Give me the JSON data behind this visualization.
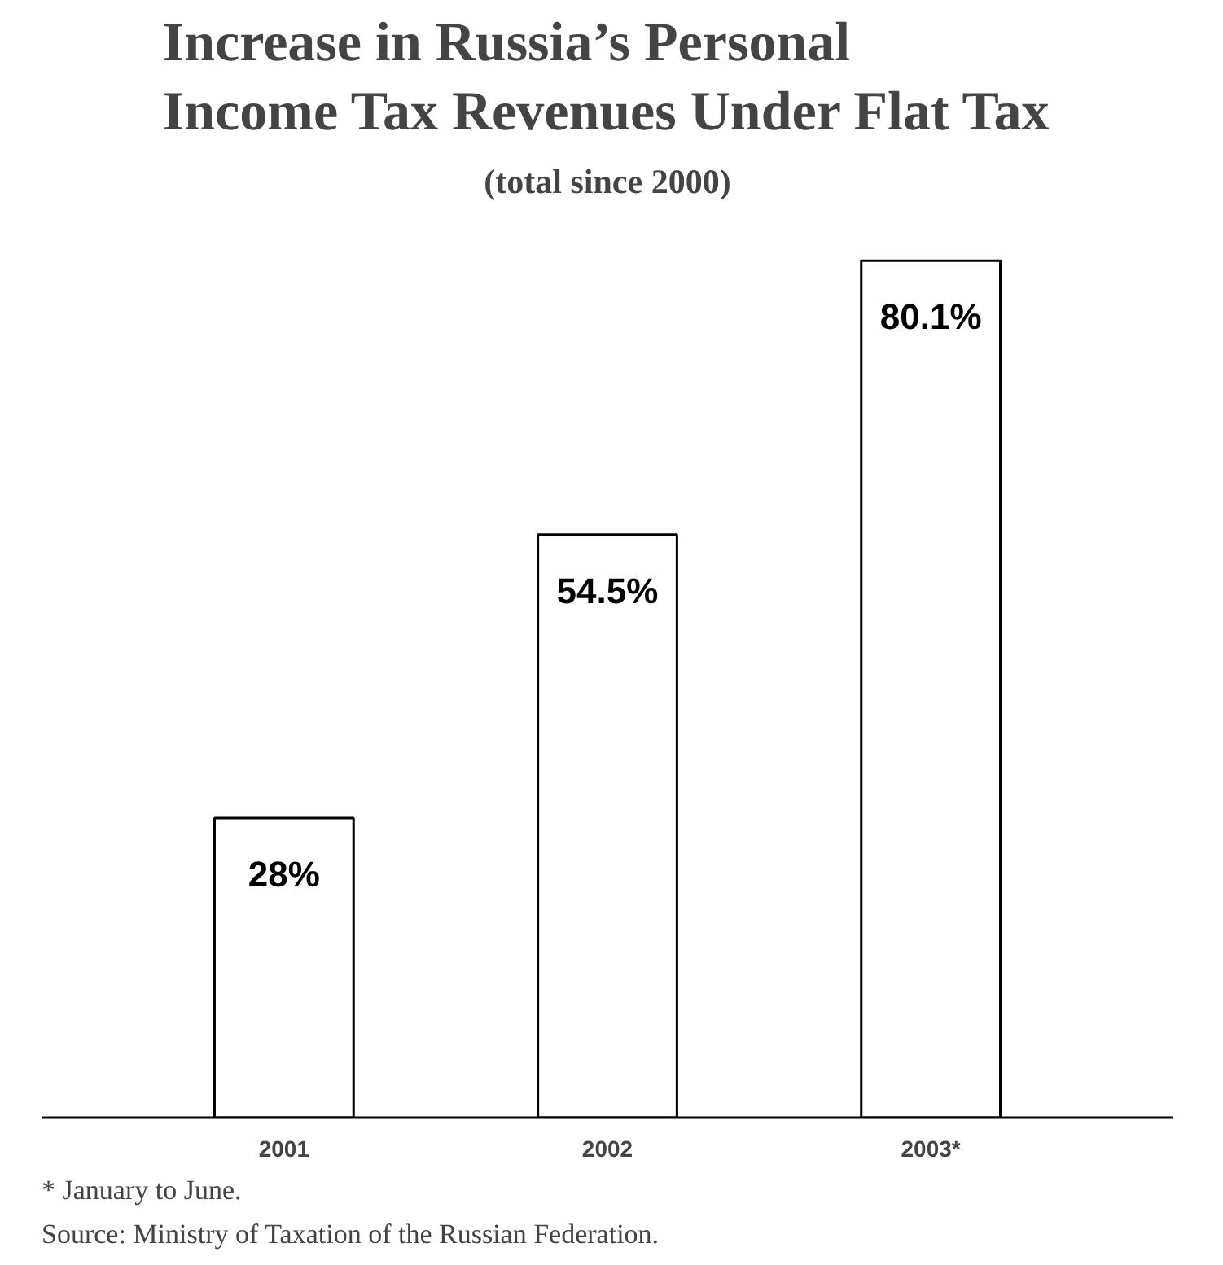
{
  "chart_data": {
    "type": "bar",
    "title": "Increase in Russia’s Personal Income Tax Revenues Under Flat Tax",
    "subtitle": "(total since 2000)",
    "categories": [
      "2001",
      "2002",
      "2003*"
    ],
    "values": [
      28,
      54.5,
      80.1
    ],
    "value_labels": [
      "28%",
      "54.5%",
      "80.1%"
    ],
    "color": "#ffffff",
    "annotations": [
      "* January to June.",
      "Source: Ministry of Taxation of the Russian Federation."
    ]
  }
}
